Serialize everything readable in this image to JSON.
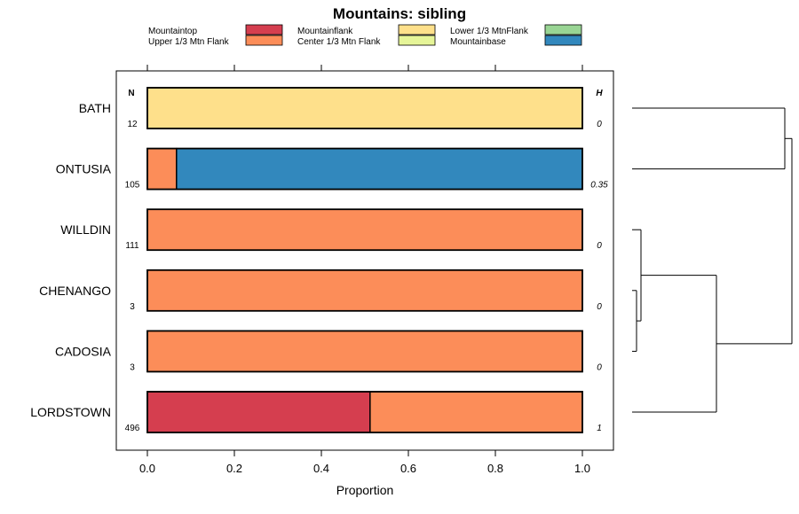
{
  "chart_data": {
    "type": "bar",
    "orientation": "horizontal-stacked",
    "title": "Mountains: sibling",
    "xlabel": "Proportion",
    "ylabel": "",
    "xlim": [
      0,
      1
    ],
    "xticks": [
      "0.0",
      "0.2",
      "0.4",
      "0.6",
      "0.8",
      "1.0"
    ],
    "column_headers": {
      "n": "N",
      "h": "H"
    },
    "legend": [
      {
        "name": "Mountaintop",
        "color": "#d53e4f"
      },
      {
        "name": "Upper 1/3 Mtn Flank",
        "color": "#fc8d59"
      },
      {
        "name": "Mountainflank",
        "color": "#fee08b"
      },
      {
        "name": "Center 1/3 Mtn Flank",
        "color": "#e6f598"
      },
      {
        "name": "Lower 1/3 MtnFlank",
        "color": "#99d594"
      },
      {
        "name": "Mountainbase",
        "color": "#3288bd"
      }
    ],
    "categories": [
      "BATH",
      "ONTUSIA",
      "WILLDIN",
      "CHENANGO",
      "CADOSIA",
      "LORDSTOWN"
    ],
    "n": [
      "12",
      "105",
      "111",
      "3",
      "3",
      "496"
    ],
    "h": [
      "0",
      "0.35",
      "0",
      "0",
      "0",
      "1"
    ],
    "series": [
      {
        "name": "Mountaintop",
        "values": [
          0,
          0,
          0,
          0,
          0,
          0.512
        ]
      },
      {
        "name": "Upper 1/3 Mtn Flank",
        "values": [
          0,
          0.067,
          1,
          1,
          1,
          0.488
        ]
      },
      {
        "name": "Mountainflank",
        "values": [
          1,
          0,
          0,
          0,
          0,
          0
        ]
      },
      {
        "name": "Center 1/3 Mtn Flank",
        "values": [
          0,
          0,
          0,
          0,
          0,
          0
        ]
      },
      {
        "name": "Lower 1/3 MtnFlank",
        "values": [
          0,
          0,
          0,
          0,
          0,
          0
        ]
      },
      {
        "name": "Mountainbase",
        "values": [
          0,
          0.933,
          0,
          0,
          0,
          0
        ]
      }
    ],
    "dendrogram": {
      "merges": [
        {
          "left": "CHENANGO",
          "right": "CADOSIA",
          "height": 0
        },
        {
          "left": "WILLDIN",
          "right": [
            "CHENANGO",
            "CADOSIA"
          ],
          "height": 0.02
        },
        {
          "left": [
            "WILLDIN",
            "CHENANGO",
            "CADOSIA"
          ],
          "right": "LORDSTOWN",
          "height": 0.5
        },
        {
          "left": "BATH",
          "right": "ONTUSIA",
          "height": 1.0
        },
        {
          "left": [
            "BATH",
            "ONTUSIA"
          ],
          "right": [
            "WILLDIN",
            "CHENANGO",
            "CADOSIA",
            "LORDSTOWN"
          ],
          "height": 1.0
        }
      ]
    }
  }
}
